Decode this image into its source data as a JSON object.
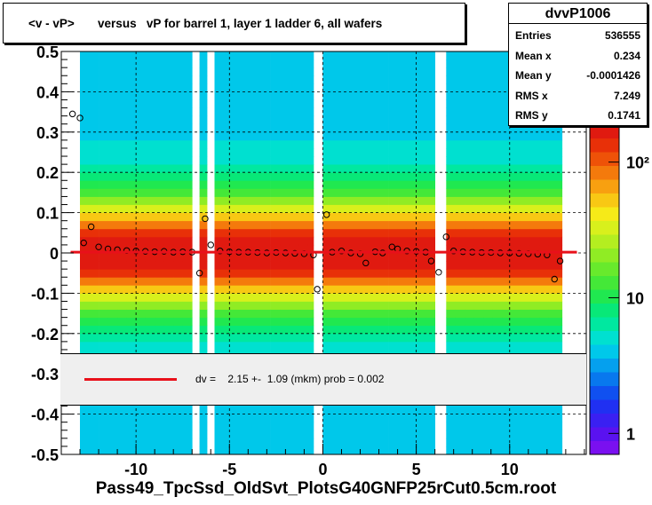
{
  "chart_data": {
    "type": "heatmap",
    "title": "<v - vP>       versus   vP for barrel 1, layer 1 ladder 6, all wafers",
    "xlabel": "Pass49_TpcSsd_OldSvt_PlotsG40GNFP25rCut0.5cm.root",
    "xlim": [
      -14.0,
      14.1
    ],
    "ylim": [
      -0.5,
      0.5
    ],
    "x_ticks": [
      -10,
      -5,
      0,
      5,
      10
    ],
    "x_tick_labels": [
      "-10",
      "-5",
      "0",
      "5",
      "10"
    ],
    "y_ticks": [
      -0.5,
      -0.4,
      -0.3,
      -0.2,
      -0.1,
      0,
      0.1,
      0.2,
      0.3,
      0.4,
      0.5
    ],
    "y_tick_labels": [
      "-0.5",
      "-0.4",
      "-0.3",
      "-0.2",
      "-0.1",
      "0",
      "0.1",
      "0.2",
      "0.3",
      "0.4",
      "0.5"
    ],
    "grid": true,
    "colorbar": {
      "scale": "log",
      "tick_labels": [
        "1",
        "10",
        "10²"
      ],
      "tick_values": [
        1,
        10,
        100
      ]
    },
    "occupied_x_ranges": [
      [
        -13.0,
        -7.0
      ],
      [
        -6.6,
        -6.2
      ],
      [
        -5.8,
        -0.5
      ],
      [
        0.0,
        6.0
      ],
      [
        6.6,
        12.8
      ]
    ],
    "band": {
      "y_center": 0.0,
      "half_width_peak": 0.1
    },
    "profile_points": [
      {
        "x": -13.4,
        "y": 0.345
      },
      {
        "x": -13.0,
        "y": 0.335
      },
      {
        "x": -12.8,
        "y": 0.025
      },
      {
        "x": -12.4,
        "y": 0.065
      },
      {
        "x": -12.0,
        "y": 0.015
      },
      {
        "x": -11.5,
        "y": 0.01
      },
      {
        "x": -11.0,
        "y": 0.008
      },
      {
        "x": -10.5,
        "y": 0.006
      },
      {
        "x": -10.0,
        "y": 0.005
      },
      {
        "x": -9.5,
        "y": 0.004
      },
      {
        "x": -9.0,
        "y": 0.003
      },
      {
        "x": -8.5,
        "y": 0.004
      },
      {
        "x": -8.0,
        "y": 0.002
      },
      {
        "x": -7.5,
        "y": 0.003
      },
      {
        "x": -7.0,
        "y": 0.002
      },
      {
        "x": -6.6,
        "y": -0.05
      },
      {
        "x": -6.3,
        "y": 0.085
      },
      {
        "x": -6.0,
        "y": 0.02
      },
      {
        "x": -5.5,
        "y": 0.005
      },
      {
        "x": -5.0,
        "y": 0.003
      },
      {
        "x": -4.5,
        "y": 0.002
      },
      {
        "x": -4.0,
        "y": 0.002
      },
      {
        "x": -3.5,
        "y": 0.001
      },
      {
        "x": -3.0,
        "y": 0.0
      },
      {
        "x": -2.5,
        "y": 0.001
      },
      {
        "x": -2.0,
        "y": 0.0
      },
      {
        "x": -1.5,
        "y": -0.001
      },
      {
        "x": -1.0,
        "y": -0.002
      },
      {
        "x": -0.5,
        "y": -0.005
      },
      {
        "x": -0.3,
        "y": -0.09
      },
      {
        "x": 0.2,
        "y": 0.095
      },
      {
        "x": 0.5,
        "y": 0.002
      },
      {
        "x": 1.0,
        "y": 0.005
      },
      {
        "x": 1.5,
        "y": 0.0
      },
      {
        "x": 2.0,
        "y": -0.002
      },
      {
        "x": 2.3,
        "y": -0.025
      },
      {
        "x": 2.8,
        "y": 0.003
      },
      {
        "x": 3.2,
        "y": 0.0
      },
      {
        "x": 3.7,
        "y": 0.015
      },
      {
        "x": 4.0,
        "y": 0.01
      },
      {
        "x": 4.5,
        "y": 0.005
      },
      {
        "x": 5.0,
        "y": 0.004
      },
      {
        "x": 5.5,
        "y": 0.002
      },
      {
        "x": 5.8,
        "y": -0.02
      },
      {
        "x": 6.2,
        "y": -0.048
      },
      {
        "x": 6.6,
        "y": 0.04
      },
      {
        "x": 7.0,
        "y": 0.005
      },
      {
        "x": 7.5,
        "y": 0.003
      },
      {
        "x": 8.0,
        "y": 0.002
      },
      {
        "x": 8.5,
        "y": 0.001
      },
      {
        "x": 9.0,
        "y": 0.001
      },
      {
        "x": 9.5,
        "y": 0.0
      },
      {
        "x": 10.0,
        "y": 0.0
      },
      {
        "x": 10.5,
        "y": -0.001
      },
      {
        "x": 11.0,
        "y": -0.002
      },
      {
        "x": 11.5,
        "y": -0.003
      },
      {
        "x": 12.0,
        "y": -0.005
      },
      {
        "x": 12.4,
        "y": -0.065
      },
      {
        "x": 12.7,
        "y": -0.02
      }
    ],
    "fit": {
      "type": "line",
      "y": 0.002,
      "x_range": [
        -13.5,
        13.6
      ]
    }
  },
  "stats": {
    "name": "dvvP1006",
    "rows": [
      {
        "key": "Entries",
        "value": "536555"
      },
      {
        "key": "Mean x",
        "value": "0.234"
      },
      {
        "key": "Mean y",
        "value": "-0.0001426"
      },
      {
        "key": "RMS x",
        "value": "7.249"
      },
      {
        "key": "RMS y",
        "value": "0.1741"
      }
    ]
  },
  "fit_box": {
    "text": "dv =    2.15 +-  1.09 (mkm) prob = 0.002"
  },
  "colors": {
    "fit_line": "#e8101a",
    "frame": "#000000"
  }
}
